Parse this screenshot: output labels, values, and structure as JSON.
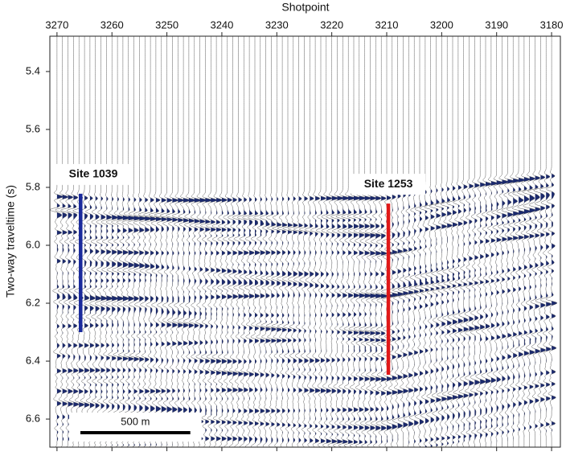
{
  "chart_data": {
    "type": "seismic",
    "x_label": "Shotpoint",
    "y_label": "Two-way traveltime (s)",
    "xlim": [
      3271.3,
      3178.4
    ],
    "xticks": [
      3270,
      3260,
      3250,
      3240,
      3230,
      3220,
      3210,
      3200,
      3190,
      3180
    ],
    "ylim": [
      5.278,
      6.697
    ],
    "yticks": [
      5.4,
      5.6,
      5.8,
      {
        "value": 6.0,
        "label": "6.0"
      },
      6.2,
      6.4,
      6.6
    ],
    "trace_color": "#1b2a6e",
    "sites": [
      {
        "name": "Site 1039",
        "color": "#1a2a9c",
        "x": 3265.7,
        "top": 5.822,
        "bottom": 6.3
      },
      {
        "name": "Site 1253",
        "color": "#e01818",
        "x": 3209.7,
        "top": 5.856,
        "bottom": 6.447
      }
    ],
    "scale_bar": {
      "label": "500 m",
      "length": 20
    }
  }
}
